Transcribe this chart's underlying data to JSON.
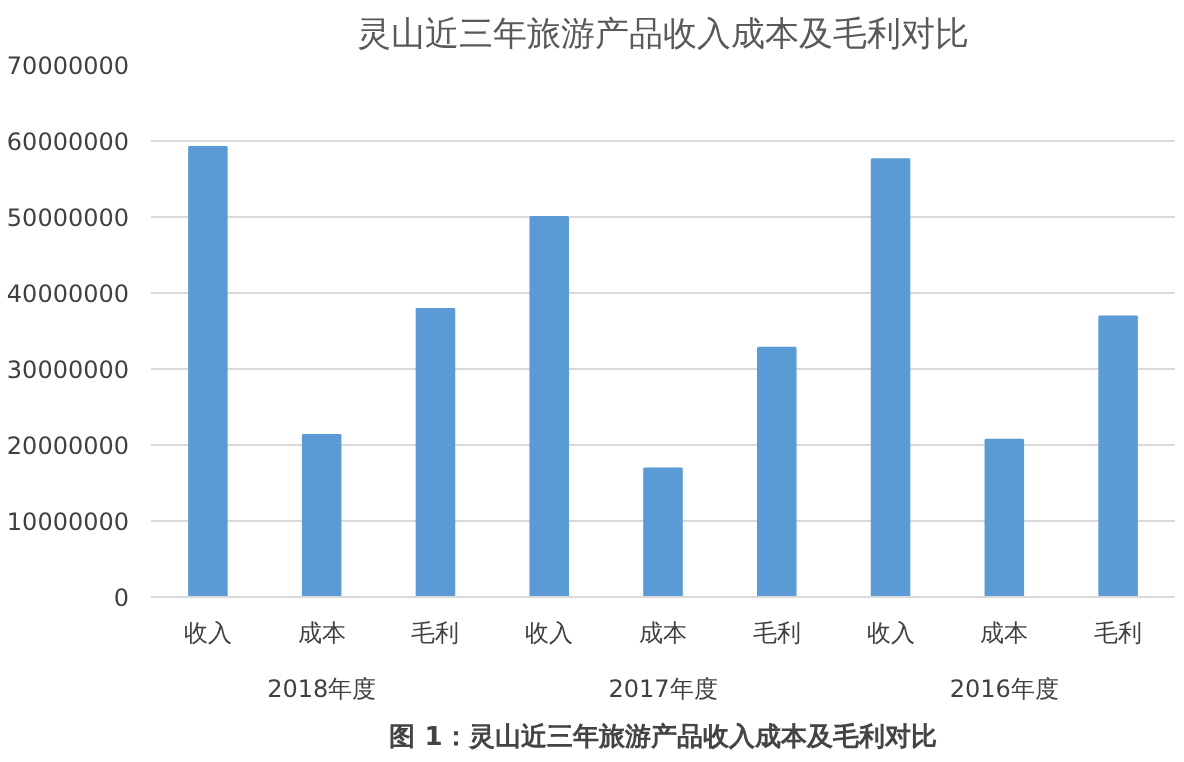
{
  "chart_data": {
    "type": "bar",
    "title": "灵山近三年旅游产品收入成本及毛利对比",
    "categories": [
      "收入",
      "成本",
      "毛利",
      "收入",
      "成本",
      "毛利",
      "收入",
      "成本",
      "毛利"
    ],
    "values": [
      59200000,
      21300000,
      37900000,
      50000000,
      16900000,
      32800000,
      57600000,
      20700000,
      36900000
    ],
    "color": "#5b9bd5",
    "ylim": [
      0,
      70000000
    ],
    "yticks": [
      0,
      10000000,
      20000000,
      30000000,
      40000000,
      50000000,
      60000000,
      70000000
    ],
    "grid": "y",
    "annotations": [
      "2018年度",
      "2017年度",
      "2016年度",
      "图 1：灵山近三年旅游产品收入成本及毛利对比"
    ]
  }
}
